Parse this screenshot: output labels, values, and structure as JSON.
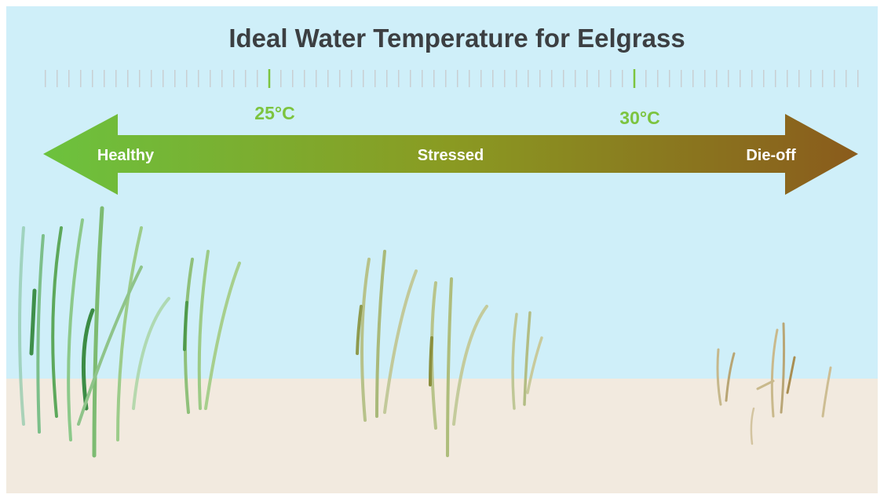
{
  "header": {
    "title": "Ideal Water Temperature for Eelgrass"
  },
  "scale": {
    "markers": [
      {
        "label": "25°C"
      },
      {
        "label": "30°C"
      }
    ]
  },
  "arrow": {
    "zones": [
      {
        "label": "Healthy"
      },
      {
        "label": "Stressed"
      },
      {
        "label": "Die-off"
      }
    ]
  }
}
